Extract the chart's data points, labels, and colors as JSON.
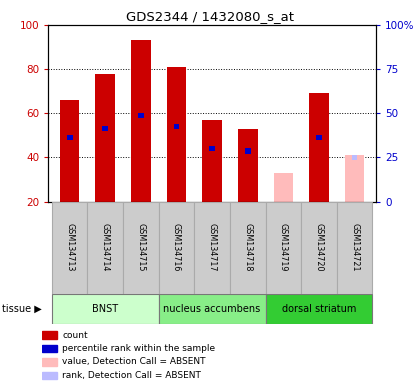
{
  "title": "GDS2344 / 1432080_s_at",
  "samples": [
    "GSM134713",
    "GSM134714",
    "GSM134715",
    "GSM134716",
    "GSM134717",
    "GSM134718",
    "GSM134719",
    "GSM134720",
    "GSM134721"
  ],
  "red_values": [
    66,
    78,
    93,
    81,
    57,
    53,
    0,
    69,
    0
  ],
  "blue_markers": [
    49,
    53,
    59,
    54,
    44,
    43,
    0,
    49,
    0
  ],
  "absent_pink": [
    0,
    0,
    0,
    0,
    0,
    0,
    33,
    0,
    41
  ],
  "absent_blue": [
    0,
    0,
    0,
    0,
    0,
    0,
    0,
    0,
    40
  ],
  "tissue_groups": [
    {
      "label": "BNST",
      "start": 0,
      "end": 3,
      "color": "#ccffcc"
    },
    {
      "label": "nucleus accumbens",
      "start": 3,
      "end": 6,
      "color": "#88ee88"
    },
    {
      "label": "dorsal striatum",
      "start": 6,
      "end": 9,
      "color": "#33cc33"
    }
  ],
  "ylim": [
    20,
    100
  ],
  "y_ticks_left": [
    20,
    40,
    60,
    80,
    100
  ],
  "y_right_labels": [
    "0",
    "25",
    "50",
    "75",
    "100%"
  ],
  "right_tick_positions": [
    20,
    40,
    60,
    80,
    100
  ],
  "bar_color": "#cc0000",
  "blue_color": "#0000cc",
  "pink_color": "#ffbbbb",
  "light_blue_color": "#bbbbff",
  "bar_width": 0.55,
  "tick_label_color": "#cc0000",
  "right_tick_color": "#0000cc",
  "legend_items": [
    {
      "color": "#cc0000",
      "label": "count"
    },
    {
      "color": "#0000cc",
      "label": "percentile rank within the sample"
    },
    {
      "color": "#ffbbbb",
      "label": "value, Detection Call = ABSENT"
    },
    {
      "color": "#bbbbff",
      "label": "rank, Detection Call = ABSENT"
    }
  ],
  "grid_lines": [
    40,
    60,
    80
  ],
  "sample_box_color": "#cccccc",
  "sample_box_edge": "#aaaaaa"
}
